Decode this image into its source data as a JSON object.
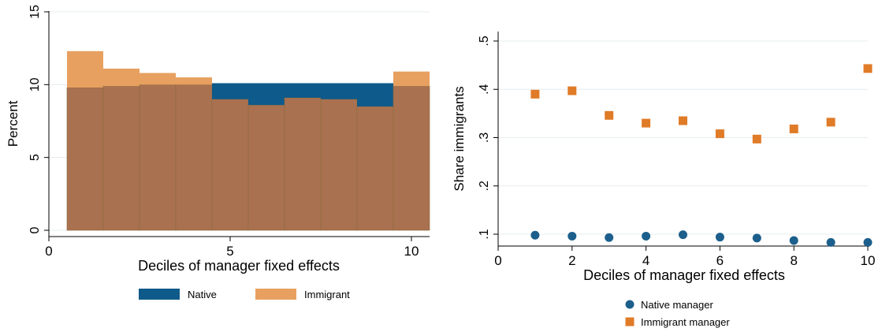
{
  "chart_data": [
    {
      "type": "bar",
      "xlabel": "Deciles of manager fixed effects",
      "ylabel": "Percent",
      "xlim": [
        0,
        10.5
      ],
      "ylim": [
        0,
        15
      ],
      "x_ticks": [
        "0",
        "5",
        "10"
      ],
      "y_ticks": [
        "0",
        "5",
        "10",
        "15"
      ],
      "categories": [
        "1",
        "2",
        "3",
        "4",
        "5",
        "6",
        "7",
        "8",
        "9",
        "10"
      ],
      "grid": true,
      "legend_position": "bottom",
      "series": [
        {
          "name": "Native",
          "color": "#0e5a8a",
          "values": [
            9.8,
            9.9,
            10.0,
            10.0,
            10.1,
            10.1,
            10.1,
            10.1,
            10.1,
            9.9
          ]
        },
        {
          "name": "Immigrant",
          "color": "#e8a060",
          "values": [
            12.3,
            11.1,
            10.8,
            10.5,
            9.0,
            8.6,
            9.1,
            9.0,
            8.5,
            10.9
          ]
        }
      ],
      "overlap_color": "#a97150"
    },
    {
      "type": "scatter",
      "xlabel": "Deciles of manager fixed effects",
      "ylabel": "Share immigrants",
      "xlim": [
        0,
        10
      ],
      "ylim": [
        0.08,
        0.5
      ],
      "x_ticks": [
        "0",
        "2",
        "4",
        "6",
        "8",
        "10"
      ],
      "y_ticks": [
        ".1",
        ".2",
        ".3",
        ".4",
        ".5"
      ],
      "grid": true,
      "legend_position": "bottom",
      "series": [
        {
          "name": "Native manager",
          "marker": "circle",
          "color": "#1c5f8c",
          "x": [
            1,
            2,
            3,
            4,
            5,
            6,
            7,
            8,
            9,
            10
          ],
          "y": [
            0.098,
            0.096,
            0.093,
            0.096,
            0.099,
            0.094,
            0.092,
            0.087,
            0.083,
            0.083
          ]
        },
        {
          "name": "Immigrant manager",
          "marker": "square",
          "color": "#e07b28",
          "x": [
            1,
            2,
            3,
            4,
            5,
            6,
            7,
            8,
            9,
            10
          ],
          "y": [
            0.39,
            0.397,
            0.346,
            0.33,
            0.335,
            0.308,
            0.297,
            0.318,
            0.332,
            0.443
          ]
        }
      ]
    }
  ]
}
